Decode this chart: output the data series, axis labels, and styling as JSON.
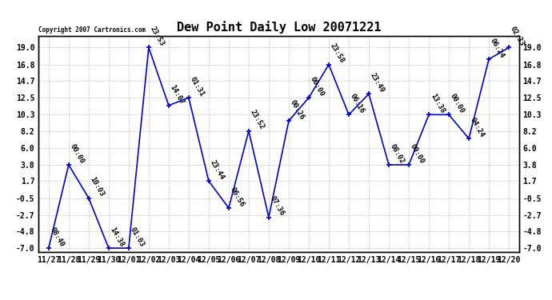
{
  "title": "Dew Point Daily Low 20071221",
  "copyright": "Copyright 2007 Cartronics.com",
  "x_labels": [
    "11/27",
    "11/28",
    "11/29",
    "11/30",
    "12/01",
    "12/02",
    "12/03",
    "12/04",
    "12/05",
    "12/06",
    "12/07",
    "12/08",
    "12/09",
    "12/10",
    "12/11",
    "12/12",
    "12/13",
    "12/14",
    "12/15",
    "12/16",
    "12/17",
    "12/18",
    "12/19",
    "12/20"
  ],
  "y_values": [
    -7.0,
    3.8,
    -0.5,
    -7.0,
    -7.0,
    19.0,
    11.5,
    12.5,
    1.7,
    -1.8,
    8.2,
    -3.0,
    9.5,
    12.5,
    16.8,
    10.3,
    13.0,
    3.8,
    3.8,
    10.3,
    10.3,
    7.2,
    17.5,
    19.0
  ],
  "time_labels": [
    "08:40",
    "00:00",
    "10:03",
    "14:38",
    "01:03",
    "23:53",
    "14:07",
    "01:31",
    "23:44",
    "06:56",
    "23:52",
    "07:36",
    "00:26",
    "00:00",
    "23:58",
    "06:16",
    "23:49",
    "08:02",
    "00:00",
    "13:38",
    "00:00",
    "04:24",
    "06:24",
    "02:33"
  ],
  "y_ticks": [
    19.0,
    16.8,
    14.7,
    12.5,
    10.3,
    8.2,
    6.0,
    3.8,
    1.7,
    -0.5,
    -2.7,
    -4.8,
    -7.0
  ],
  "ylim": [
    -7.5,
    20.5
  ],
  "xlim": [
    -0.5,
    23.5
  ],
  "line_color": "#0000CC",
  "bg_color": "#ffffff",
  "grid_color": "#aaaaaa",
  "title_fontsize": 11,
  "tick_fontsize": 7,
  "annot_fontsize": 6.5
}
